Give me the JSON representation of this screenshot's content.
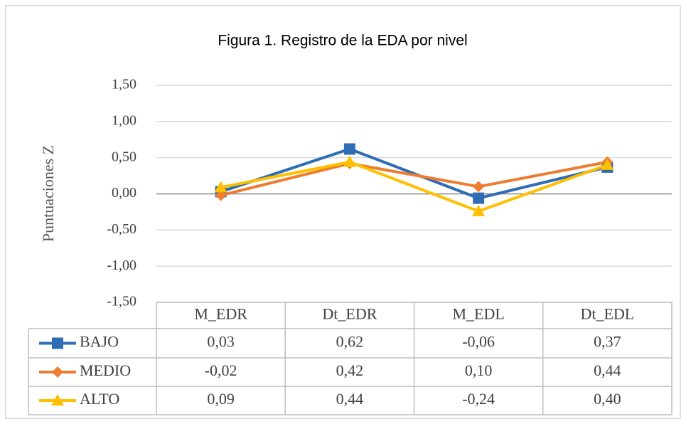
{
  "chart_data": {
    "type": "line",
    "title": "Figura 1. Registro de la EDA por nivel",
    "y_label": "Puntuaciones Z",
    "categories": [
      "M_EDR",
      "Dt_EDR",
      "M_EDL",
      "Dt_EDL"
    ],
    "series": [
      {
        "name": "BAJO",
        "color": "#2e6db4",
        "marker": "square",
        "values": [
          0.03,
          0.62,
          -0.06,
          0.37
        ],
        "value_labels": [
          "0,03",
          "0,62",
          "-0,06",
          "0,37"
        ]
      },
      {
        "name": "MEDIO",
        "color": "#ed7d31",
        "marker": "diamond",
        "values": [
          -0.02,
          0.42,
          0.1,
          0.44
        ],
        "value_labels": [
          "-0,02",
          "0,42",
          "0,10",
          "0,44"
        ]
      },
      {
        "name": "ALTO",
        "color": "#ffc000",
        "marker": "triangle",
        "values": [
          0.09,
          0.44,
          -0.24,
          0.4
        ],
        "value_labels": [
          "0,09",
          "0,44",
          "-0,24",
          "0,40"
        ]
      }
    ],
    "ylim": [
      -1.5,
      1.5
    ],
    "yticks": [
      {
        "value": -1.5,
        "label": "-1,50"
      },
      {
        "value": -1.0,
        "label": "-1,00"
      },
      {
        "value": -0.5,
        "label": "-0,50"
      },
      {
        "value": 0,
        "label": "0,00"
      },
      {
        "value": 0.5,
        "label": "0,50"
      },
      {
        "value": 1.0,
        "label": "1,00"
      },
      {
        "value": 1.5,
        "label": "1,50"
      }
    ],
    "grid": true
  }
}
